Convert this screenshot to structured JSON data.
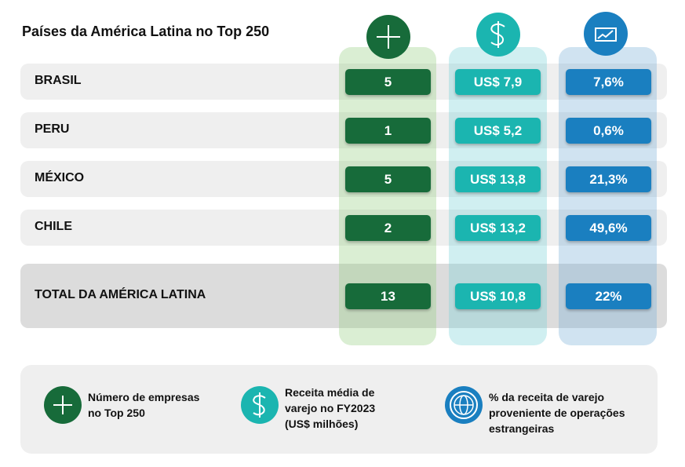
{
  "title": "Países da América Latina no Top 250",
  "rows": [
    {
      "country": "BRASIL",
      "count": "5",
      "revenue": "US$ 7,9",
      "foreign": "7,6%"
    },
    {
      "country": "PERU",
      "count": "1",
      "revenue": "US$ 5,2",
      "foreign": "0,6%"
    },
    {
      "country": "MÉXICO",
      "count": "5",
      "revenue": "US$ 13,8",
      "foreign": "21,3%"
    },
    {
      "country": "CHILE",
      "count": "2",
      "revenue": "US$ 13,2",
      "foreign": "49,6%"
    }
  ],
  "total": {
    "country": "TOTAL DA AMÉRICA LATINA",
    "count": "13",
    "revenue": "US$ 10,8",
    "foreign": "22%"
  },
  "legend": [
    {
      "label": "Número de empresas no Top 250"
    },
    {
      "label": "Receita média de varejo no FY2023 (US$ milhões)"
    },
    {
      "label": "% da receita de varejo proveniente de operações estrangeiras"
    }
  ]
}
